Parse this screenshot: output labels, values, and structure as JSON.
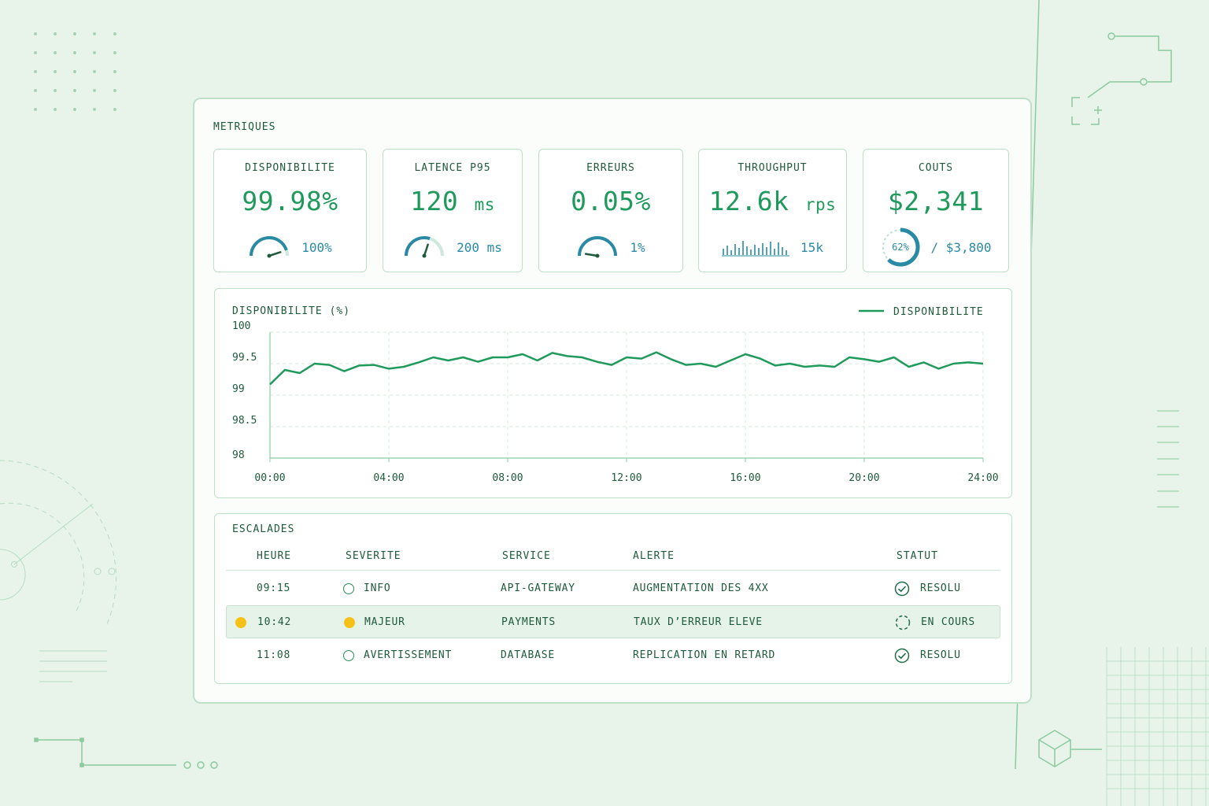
{
  "section_title": "METRIQUES",
  "metrics": [
    {
      "label": "DISPONIBILITE",
      "value": "99.98%",
      "unit": "",
      "ref": "100%",
      "gauge_level": 0.9
    },
    {
      "label": "LATENCE P95",
      "value": "120",
      "unit": "ms",
      "ref": "200 ms",
      "gauge_level": 0.6
    },
    {
      "label": "ERREURS",
      "value": "0.05%",
      "unit": "",
      "ref": "1%",
      "gauge_level": 0.05
    },
    {
      "label": "THROUGHPUT",
      "value": "12.6k",
      "unit": "rps",
      "ref": "15k"
    },
    {
      "label": "COUTS",
      "value": "$2,341",
      "unit": "",
      "ring_label": "62%",
      "ring_fraction": 0.62,
      "ref": "/ $3,800"
    }
  ],
  "colors": {
    "accent": "#1f9a5c",
    "secondary": "#2a8aa6",
    "major": "#f6c117",
    "text": "#1f5a3c"
  },
  "chart_data": {
    "type": "line",
    "title": "DISPONIBILITE (%)",
    "legend": "DISPONIBILITE",
    "legend_position": "top-right",
    "grid": true,
    "ylim": [
      98,
      100
    ],
    "yticks": [
      "100",
      "99.5",
      "99",
      "98.5",
      "98"
    ],
    "xticks": [
      "00:00",
      "04:00",
      "08:00",
      "12:00",
      "16:00",
      "20:00",
      "24:00"
    ],
    "xlim": [
      0,
      24
    ],
    "series": [
      {
        "name": "DISPONIBILITE",
        "x": [
          0,
          0.5,
          1,
          1.5,
          2,
          2.5,
          3,
          3.5,
          4,
          4.5,
          5,
          5.5,
          6,
          6.5,
          7,
          7.5,
          8,
          8.5,
          9,
          9.5,
          10,
          10.5,
          11,
          11.5,
          12,
          12.5,
          13,
          13.5,
          14,
          14.5,
          15,
          15.5,
          16,
          16.5,
          17,
          17.5,
          18,
          18.5,
          19,
          19.5,
          20,
          20.5,
          21,
          21.5,
          22,
          22.5,
          23,
          23.5,
          24
        ],
        "values": [
          99.17,
          99.4,
          99.35,
          99.5,
          99.48,
          99.38,
          99.47,
          99.48,
          99.42,
          99.45,
          99.52,
          99.6,
          99.55,
          99.6,
          99.53,
          99.6,
          99.6,
          99.65,
          99.55,
          99.67,
          99.62,
          99.6,
          99.53,
          99.48,
          99.6,
          99.58,
          99.68,
          99.57,
          99.48,
          99.5,
          99.45,
          99.55,
          99.65,
          99.58,
          99.47,
          99.5,
          99.45,
          99.47,
          99.45,
          99.6,
          99.57,
          99.53,
          99.6,
          99.45,
          99.52,
          99.42,
          99.5,
          99.52,
          99.5
        ]
      }
    ]
  },
  "escalades": {
    "title": "ESCALADES",
    "headers": [
      "HEURE",
      "SEVERITE",
      "SERVICE",
      "ALERTE",
      "STATUT"
    ],
    "rows": [
      {
        "time": "09:15",
        "severity": "INFO",
        "service": "API-GATEWAY",
        "alert": "AUGMENTATION DES 4XX",
        "status": "RESOLU",
        "status_icon": "check-circle-icon",
        "highlight": false
      },
      {
        "time": "10:42",
        "severity": "MAJEUR",
        "service": "PAYMENTS",
        "alert": "TAUX D’ERREUR ELEVE",
        "status": "EN COURS",
        "status_icon": "pending-circle-icon",
        "highlight": true
      },
      {
        "time": "11:08",
        "severity": "AVERTISSEMENT",
        "service": "DATABASE",
        "alert": "REPLICATION EN RETARD",
        "status": "RESOLU",
        "status_icon": "check-circle-icon",
        "highlight": false
      }
    ]
  }
}
